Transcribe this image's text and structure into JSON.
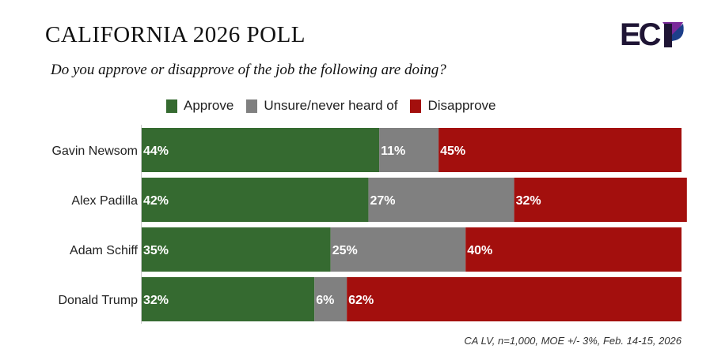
{
  "title": "CALIFORNIA 2026 POLL",
  "subtitle": "Do you approve or disapprove of the job the following are doing?",
  "logo_text": "ECP",
  "footnote": "CA LV, n=1,000, MOE +/- 3%, Feb. 14-15, 2026",
  "chart_data": {
    "type": "bar",
    "orientation": "horizontal-stacked",
    "categories": [
      "Gavin Newsom",
      "Alex Padilla",
      "Adam Schiff",
      "Donald Trump"
    ],
    "series": [
      {
        "name": "Approve",
        "color": "#356a30",
        "values": [
          44,
          42,
          35,
          32
        ]
      },
      {
        "name": "Unsure/never heard of",
        "color": "#808080",
        "values": [
          11,
          27,
          25,
          6
        ]
      },
      {
        "name": "Disapprove",
        "color": "#a30f0d",
        "values": [
          45,
          32,
          40,
          62
        ]
      }
    ],
    "legend": "top",
    "xlim": [
      0,
      100
    ],
    "grid": false
  }
}
